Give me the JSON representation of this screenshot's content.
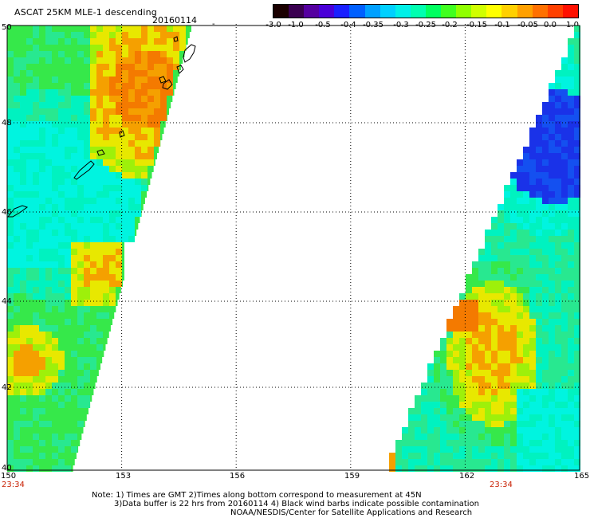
{
  "title": "ASCAT 25KM MLE-1 descending",
  "date": "20160114",
  "stray_mark": "-",
  "colorbar": {
    "labels": [
      "-3.0",
      "-1.0",
      "-0.5",
      "-0.4",
      "-0.35",
      "-0.3",
      "-0.25",
      "-0.2",
      "-0.15",
      "-0.1",
      "-0.05",
      "0.0",
      "1.0"
    ],
    "colors": [
      "#1a0000",
      "#3a0050",
      "#5500a0",
      "#4a00d8",
      "#1a20ff",
      "#0060ff",
      "#00a0ff",
      "#00d0ff",
      "#00f0e8",
      "#00ffb0",
      "#00ff60",
      "#40ff20",
      "#90ff00",
      "#d0ff00",
      "#ffff00",
      "#ffd000",
      "#ffa000",
      "#ff7000",
      "#ff4000",
      "#ff1000"
    ]
  },
  "map": {
    "lon_labels": [
      "150",
      "153",
      "156",
      "159",
      "162",
      "165"
    ],
    "lat_labels": [
      "40",
      "42",
      "44",
      "46",
      "48",
      "50"
    ],
    "time_labels": [
      "23:34",
      "23:34"
    ],
    "palette": {
      "green": "#36e84a",
      "lime": "#9ef00a",
      "yellow": "#e8e800",
      "orange": "#f5a000",
      "deeporange": "#f47a00",
      "cyan": "#00f4e0",
      "aqua": "#00f2c0",
      "teal": "#28e890",
      "blue": "#1450f0",
      "deepblue": "#1a32e8"
    }
  },
  "notes": [
    "Note: 1) Times are GMT 2)Times along bottom correspond to measurement at 45N",
    "3)Data buffer is 22 hrs from 20160114 4) Black wind barbs indicate possible contamination",
    "NOAA/NESDIS/Center for Satellite Applications and Research"
  ]
}
